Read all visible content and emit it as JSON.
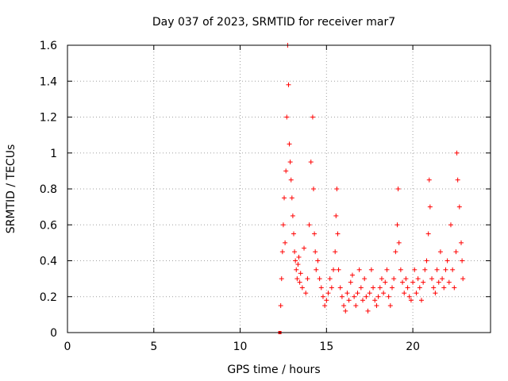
{
  "chart_data": {
    "type": "scatter",
    "title": "Day 037 of 2023, SRMTID for receiver mar7",
    "xlabel": "GPS time / hours",
    "ylabel": "SRMTID / TECUs",
    "xlim": [
      0,
      24.5
    ],
    "ylim": [
      0,
      1.6
    ],
    "xticks": [
      0,
      5,
      10,
      15,
      20
    ],
    "xtick_labels": [
      "0",
      "5",
      "10",
      "15",
      "20"
    ],
    "yticks": [
      0,
      0.2,
      0.4,
      0.6,
      0.8,
      1.0,
      1.2,
      1.4,
      1.6
    ],
    "ytick_labels": [
      "0",
      "0.2",
      "0.4",
      "0.6",
      "0.8",
      "1",
      "1.2",
      "1.4",
      "1.6"
    ],
    "grid": true,
    "marker": "+",
    "color": "#ff0000",
    "series": [
      {
        "name": "SRMTID",
        "x": [
          12.35,
          12.4,
          12.45,
          12.5,
          12.55,
          12.6,
          12.65,
          12.7,
          12.75,
          12.8,
          12.85,
          12.9,
          12.95,
          13.0,
          13.05,
          13.1,
          13.15,
          13.2,
          13.25,
          13.3,
          13.35,
          13.4,
          13.45,
          13.5,
          13.6,
          13.7,
          13.8,
          13.9,
          14.0,
          14.1,
          14.2,
          14.25,
          14.3,
          14.35,
          14.4,
          14.5,
          14.6,
          14.7,
          14.8,
          14.9,
          15.0,
          15.1,
          15.2,
          15.3,
          15.4,
          15.5,
          15.55,
          15.6,
          15.65,
          15.7,
          15.8,
          15.9,
          16.0,
          16.1,
          16.2,
          16.3,
          16.4,
          16.5,
          16.6,
          16.7,
          16.8,
          16.9,
          17.0,
          17.1,
          17.2,
          17.3,
          17.4,
          17.5,
          17.6,
          17.7,
          17.8,
          17.9,
          18.0,
          18.1,
          18.2,
          18.3,
          18.4,
          18.5,
          18.6,
          18.7,
          18.8,
          18.9,
          19.0,
          19.1,
          19.15,
          19.2,
          19.3,
          19.4,
          19.5,
          19.6,
          19.7,
          19.8,
          19.9,
          20.0,
          20.1,
          20.2,
          20.3,
          20.4,
          20.5,
          20.6,
          20.7,
          20.8,
          20.9,
          20.95,
          21.0,
          21.1,
          21.2,
          21.3,
          21.4,
          21.5,
          21.6,
          21.7,
          21.8,
          21.9,
          22.0,
          22.1,
          22.2,
          22.3,
          22.4,
          22.5,
          22.55,
          22.6,
          22.7,
          22.8,
          22.85,
          22.9
        ],
        "y": [
          0.15,
          0.3,
          0.45,
          0.6,
          0.75,
          0.5,
          0.9,
          1.2,
          1.6,
          1.38,
          1.05,
          0.95,
          0.85,
          0.75,
          0.65,
          0.55,
          0.45,
          0.4,
          0.35,
          0.3,
          0.38,
          0.42,
          0.28,
          0.33,
          0.25,
          0.47,
          0.22,
          0.3,
          0.6,
          0.95,
          1.2,
          0.8,
          0.55,
          0.45,
          0.35,
          0.4,
          0.3,
          0.25,
          0.2,
          0.15,
          0.18,
          0.22,
          0.3,
          0.25,
          0.35,
          0.45,
          0.65,
          0.8,
          0.55,
          0.35,
          0.25,
          0.2,
          0.15,
          0.12,
          0.22,
          0.18,
          0.28,
          0.32,
          0.2,
          0.15,
          0.22,
          0.35,
          0.25,
          0.18,
          0.3,
          0.2,
          0.12,
          0.22,
          0.35,
          0.25,
          0.18,
          0.15,
          0.2,
          0.25,
          0.3,
          0.22,
          0.28,
          0.35,
          0.2,
          0.15,
          0.25,
          0.3,
          0.45,
          0.6,
          0.8,
          0.5,
          0.35,
          0.28,
          0.22,
          0.3,
          0.25,
          0.2,
          0.18,
          0.28,
          0.35,
          0.22,
          0.3,
          0.25,
          0.18,
          0.28,
          0.35,
          0.4,
          0.55,
          0.85,
          0.7,
          0.3,
          0.25,
          0.22,
          0.35,
          0.28,
          0.45,
          0.3,
          0.25,
          0.35,
          0.4,
          0.28,
          0.6,
          0.35,
          0.25,
          0.45,
          1.0,
          0.85,
          0.7,
          0.5,
          0.4,
          0.3
        ]
      }
    ],
    "extra_marker": {
      "x": 12.3,
      "y": 0.0,
      "shape": "square"
    }
  }
}
